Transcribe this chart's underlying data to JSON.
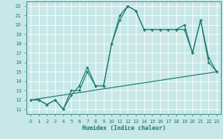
{
  "xlabel": "Humidex (Indice chaleur)",
  "bg_color": "#c8e8e8",
  "grid_color": "#b0d0d0",
  "line_color": "#1a7a6e",
  "xlim": [
    -0.5,
    23.5
  ],
  "ylim": [
    10.5,
    22.5
  ],
  "xticks": [
    0,
    1,
    2,
    3,
    4,
    5,
    6,
    7,
    8,
    9,
    10,
    11,
    12,
    13,
    14,
    15,
    16,
    17,
    18,
    19,
    20,
    21,
    22,
    23
  ],
  "yticks": [
    11,
    12,
    13,
    14,
    15,
    16,
    17,
    18,
    19,
    20,
    21,
    22
  ],
  "line1_x": [
    0,
    1,
    2,
    3,
    4,
    5,
    6,
    7,
    8,
    9,
    10,
    11,
    12,
    13,
    14,
    15,
    16,
    17,
    18,
    19,
    20,
    21,
    22,
    23
  ],
  "line1_y": [
    12,
    12,
    11.5,
    12,
    11,
    13,
    13,
    15,
    13.5,
    13.5,
    18,
    20.5,
    22,
    21.5,
    19.5,
    19.5,
    19.5,
    19.5,
    19.5,
    20,
    17,
    20.5,
    16.5,
    15
  ],
  "line2_x": [
    0,
    1,
    2,
    3,
    4,
    5,
    6,
    7,
    8,
    9,
    10,
    11,
    12,
    13,
    14,
    15,
    16,
    17,
    18,
    19,
    20,
    21,
    22,
    23
  ],
  "line2_y": [
    12,
    12,
    11.5,
    12,
    11,
    12.5,
    13.5,
    15.5,
    13.5,
    13.5,
    18,
    21,
    22,
    21.5,
    19.5,
    19.5,
    19.5,
    19.5,
    19.5,
    19.5,
    17,
    20.5,
    16,
    15
  ],
  "line3_x": [
    0,
    23
  ],
  "line3_y": [
    12,
    15
  ]
}
